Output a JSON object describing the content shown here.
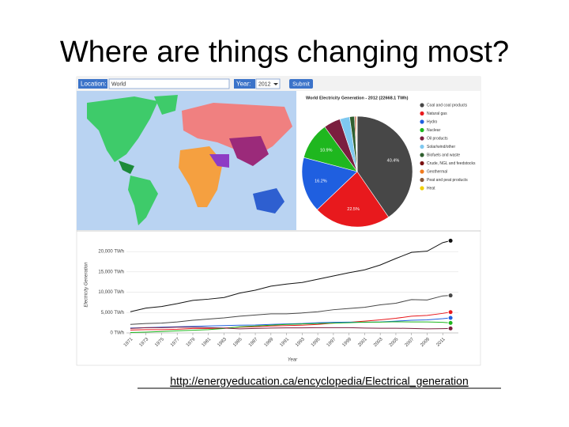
{
  "title": "Where are things changing most?",
  "link": "http://energyeducation.ca/encyclopedia/Electrical_generation",
  "form": {
    "location_label": "Location:",
    "location": "World",
    "year_label": "Year:",
    "year": "2012",
    "submit": "Submit"
  },
  "chart_data": [
    {
      "type": "pie",
      "title": "World Electricity Generation - 2012 (22668.1 TWh)",
      "categories": [
        "Coal and coal products",
        "Natural gas",
        "Hydro",
        "Nuclear",
        "Oil products",
        "Solar/wind/other",
        "Biofuels and waste",
        "Crude, NGL and feedstocks",
        "Geothermal",
        "Peat and peat products",
        "Heat"
      ],
      "values": [
        40.4,
        22.5,
        16.2,
        10.9,
        4.9,
        2.9,
        1.4,
        0.3,
        0.3,
        0.1,
        0.1
      ],
      "value_labels": [
        "40.4%",
        "22.5%",
        "16.2%",
        "10.9%",
        null,
        null,
        null,
        null,
        null,
        null,
        null
      ],
      "colors": [
        "#474747",
        "#e8191d",
        "#1f5fe0",
        "#1fb71f",
        "#7b1f3f",
        "#7ec8f0",
        "#2f5f2f",
        "#7a1010",
        "#f07a1e",
        "#8a5a3a",
        "#f0d000"
      ]
    },
    {
      "type": "line",
      "xlabel": "Year",
      "ylabel": "Electricity Generation",
      "x": [
        1971,
        1973,
        1975,
        1977,
        1979,
        1981,
        1983,
        1985,
        1987,
        1989,
        1991,
        1993,
        1995,
        1997,
        1999,
        2001,
        2003,
        2005,
        2007,
        2009,
        2011,
        2012
      ],
      "xlim": [
        1970.5,
        2013
      ],
      "xticks": [
        1971,
        1973,
        1975,
        1977,
        1979,
        1981,
        1983,
        1985,
        1987,
        1989,
        1991,
        1993,
        1995,
        1997,
        1999,
        2001,
        2003,
        2005,
        2007,
        2009,
        2011
      ],
      "ylim": [
        0,
        24500
      ],
      "yticks": [
        {
          "value": 0,
          "label": "0 TWh"
        },
        {
          "value": 5000,
          "label": "5,000 TWh"
        },
        {
          "value": 10000,
          "label": "10,000 TWh"
        },
        {
          "value": 15000,
          "label": "15,000 TWh"
        },
        {
          "value": 20000,
          "label": "20,000 TWh"
        }
      ],
      "grid": true,
      "series": [
        {
          "color": "#111111",
          "values": [
            5200,
            6100,
            6500,
            7200,
            8000,
            8300,
            8700,
            9800,
            10500,
            11500,
            12000,
            12400,
            13200,
            14000,
            14800,
            15500,
            16700,
            18300,
            19800,
            20100,
            22200,
            22668
          ]
        },
        {
          "color": "#474747",
          "values": [
            2100,
            2300,
            2400,
            2700,
            3100,
            3400,
            3700,
            4100,
            4400,
            4700,
            4700,
            4900,
            5200,
            5700,
            6000,
            6300,
            6900,
            7300,
            8200,
            8100,
            9100,
            9200
          ]
        },
        {
          "color": "#e8191d",
          "values": [
            700,
            800,
            800,
            900,
            1100,
            1100,
            1200,
            1400,
            1500,
            1700,
            1800,
            1900,
            2100,
            2400,
            2600,
            2900,
            3200,
            3600,
            4100,
            4300,
            4800,
            5100
          ]
        },
        {
          "color": "#1f5fe0",
          "values": [
            1200,
            1300,
            1400,
            1500,
            1600,
            1700,
            1800,
            1900,
            1950,
            2100,
            2200,
            2300,
            2500,
            2600,
            2650,
            2600,
            2700,
            2900,
            3100,
            3200,
            3500,
            3700
          ]
        },
        {
          "color": "#1fb71f",
          "values": [
            100,
            200,
            350,
            500,
            650,
            800,
            1100,
            1500,
            1700,
            1900,
            2100,
            2200,
            2300,
            2400,
            2500,
            2650,
            2650,
            2750,
            2700,
            2700,
            2600,
            2460
          ]
        },
        {
          "color": "#7b1f3f",
          "values": [
            1100,
            1300,
            1300,
            1400,
            1400,
            1300,
            1200,
            1000,
            1100,
            1200,
            1250,
            1250,
            1300,
            1300,
            1300,
            1200,
            1150,
            1150,
            1100,
            1000,
            1050,
            1100
          ]
        }
      ]
    }
  ]
}
